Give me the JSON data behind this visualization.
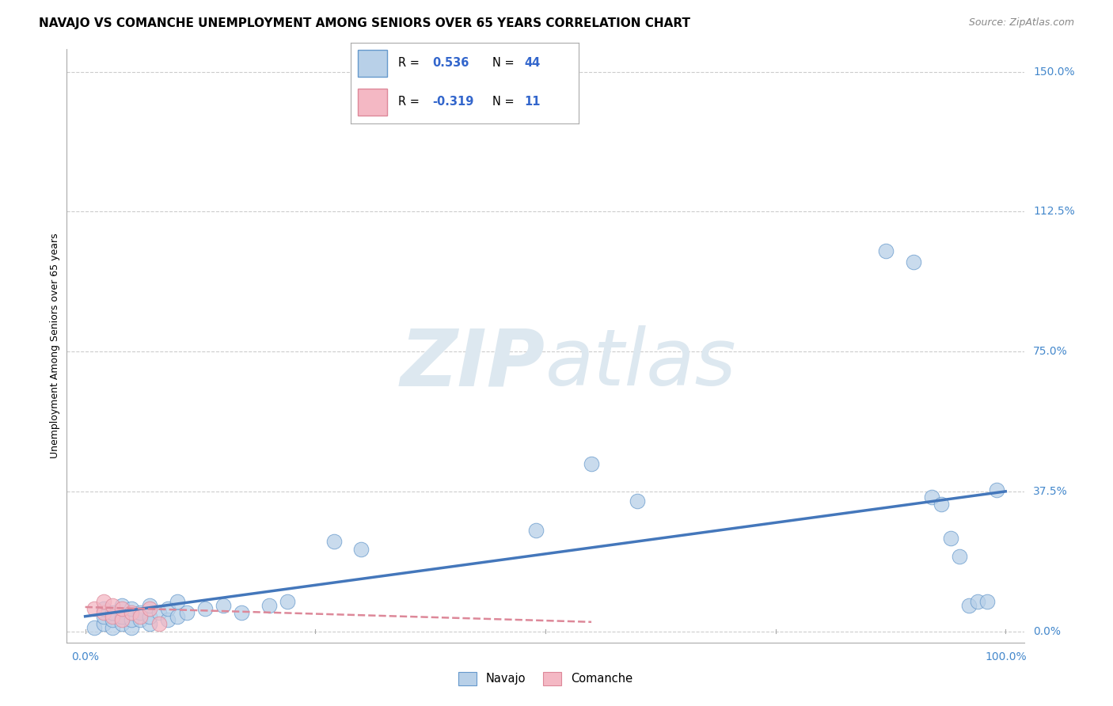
{
  "title": "NAVAJO VS COMANCHE UNEMPLOYMENT AMONG SENIORS OVER 65 YEARS CORRELATION CHART",
  "source": "Source: ZipAtlas.com",
  "ylabel": "Unemployment Among Seniors over 65 years",
  "xlim": [
    0.0,
    1.0
  ],
  "ylim": [
    0.0,
    1.5
  ],
  "ytick_labels_right": [
    "150.0%",
    "112.5%",
    "75.0%",
    "37.5%",
    "0.0%"
  ],
  "ytick_positions_right": [
    1.5,
    1.125,
    0.75,
    0.375,
    0.0
  ],
  "navajo_R": 0.536,
  "navajo_N": 44,
  "comanche_R": -0.319,
  "comanche_N": 11,
  "navajo_color": "#b8d0e8",
  "comanche_color": "#f4b8c4",
  "navajo_edge_color": "#6699cc",
  "comanche_edge_color": "#dd8899",
  "navajo_line_color": "#4477bb",
  "comanche_line_color": "#dd8899",
  "background_color": "#ffffff",
  "grid_color": "#cccccc",
  "watermark_color": "#dde8f0",
  "tick_color": "#4488cc",
  "navajo_x": [
    0.01,
    0.02,
    0.02,
    0.02,
    0.03,
    0.03,
    0.03,
    0.04,
    0.04,
    0.04,
    0.05,
    0.05,
    0.05,
    0.06,
    0.06,
    0.07,
    0.07,
    0.07,
    0.08,
    0.09,
    0.09,
    0.1,
    0.1,
    0.11,
    0.13,
    0.15,
    0.17,
    0.2,
    0.22,
    0.27,
    0.3,
    0.49,
    0.55,
    0.6,
    0.87,
    0.9,
    0.92,
    0.93,
    0.94,
    0.95,
    0.96,
    0.97,
    0.98,
    0.99
  ],
  "navajo_y": [
    0.01,
    0.02,
    0.04,
    0.06,
    0.01,
    0.03,
    0.05,
    0.02,
    0.04,
    0.07,
    0.01,
    0.03,
    0.06,
    0.03,
    0.05,
    0.02,
    0.04,
    0.07,
    0.05,
    0.03,
    0.06,
    0.04,
    0.08,
    0.05,
    0.06,
    0.07,
    0.05,
    0.07,
    0.08,
    0.24,
    0.22,
    0.27,
    0.45,
    0.35,
    1.02,
    0.99,
    0.36,
    0.34,
    0.25,
    0.2,
    0.07,
    0.08,
    0.08,
    0.38
  ],
  "comanche_x": [
    0.01,
    0.02,
    0.02,
    0.03,
    0.03,
    0.04,
    0.04,
    0.05,
    0.06,
    0.07,
    0.08
  ],
  "comanche_y": [
    0.06,
    0.05,
    0.08,
    0.04,
    0.07,
    0.03,
    0.06,
    0.05,
    0.04,
    0.06,
    0.02
  ],
  "navajo_line_x0": 0.0,
  "navajo_line_x1": 1.0,
  "navajo_line_y0": 0.04,
  "navajo_line_y1": 0.375,
  "comanche_line_x0": 0.0,
  "comanche_line_x1": 0.55,
  "comanche_line_y0": 0.065,
  "comanche_line_y1": 0.025,
  "title_fontsize": 11,
  "axis_label_fontsize": 9,
  "tick_fontsize": 10,
  "source_fontsize": 9
}
